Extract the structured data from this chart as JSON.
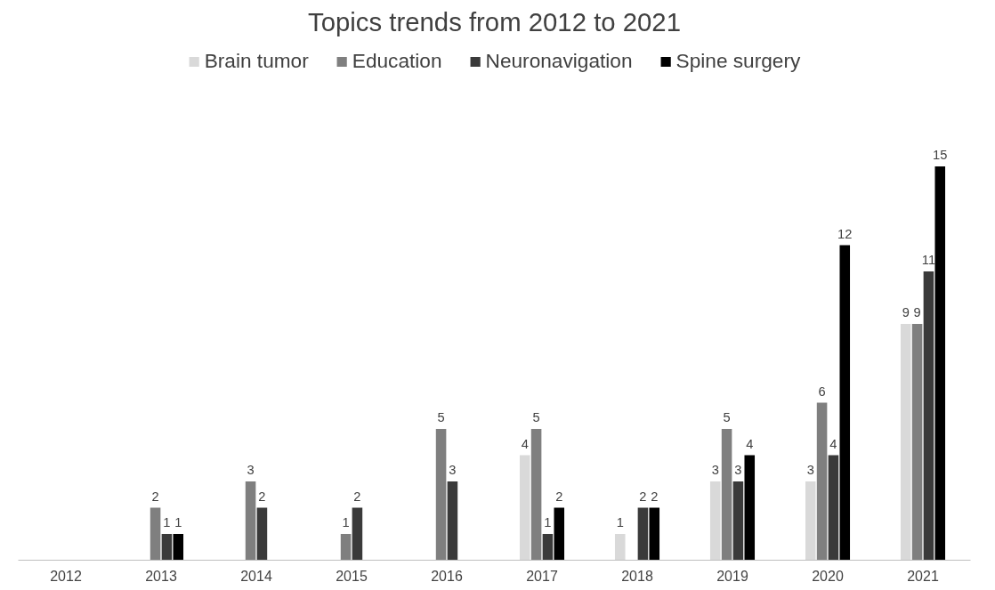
{
  "chart_data": {
    "type": "bar",
    "title": "Topics trends from 2012 to 2021",
    "categories": [
      "2012",
      "2013",
      "2014",
      "2015",
      "2016",
      "2017",
      "2018",
      "2019",
      "2020",
      "2021"
    ],
    "series": [
      {
        "name": "Brain tumor",
        "color": "#d9d9d9",
        "values": [
          null,
          null,
          null,
          null,
          null,
          4,
          1,
          3,
          3,
          9
        ]
      },
      {
        "name": "Education",
        "color": "#7f7f7f",
        "values": [
          null,
          2,
          3,
          1,
          5,
          5,
          null,
          5,
          6,
          9
        ]
      },
      {
        "name": "Neuronavigation",
        "color": "#3a3a3a",
        "values": [
          null,
          1,
          2,
          2,
          3,
          1,
          2,
          3,
          4,
          11
        ]
      },
      {
        "name": "Spine surgery",
        "color": "#000000",
        "values": [
          null,
          1,
          null,
          null,
          null,
          2,
          2,
          4,
          12,
          15
        ]
      }
    ],
    "data_labels": true,
    "legend": "top",
    "grid": false,
    "tick_labels": "x"
  }
}
